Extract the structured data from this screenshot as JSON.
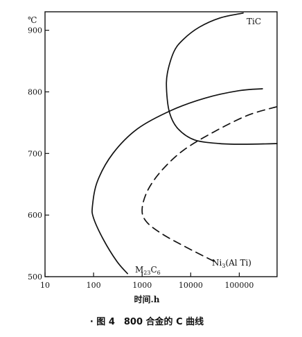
{
  "chart_data": {
    "type": "line",
    "title": "",
    "unit_label": "℃",
    "xlabel": "时间.h",
    "ylabel": "",
    "x_scale": "log",
    "xlim": [
      10,
      600000
    ],
    "ylim": [
      500,
      930
    ],
    "x_ticks": [
      10,
      100,
      1000,
      10000,
      100000
    ],
    "x_tick_labels": [
      "10",
      "100",
      "1000",
      "10000",
      "100000"
    ],
    "y_ticks": [
      500,
      600,
      700,
      800,
      900
    ],
    "y_tick_labels": [
      "500",
      "600",
      "700",
      "800",
      "900"
    ],
    "grid": false,
    "series": [
      {
        "name": "TiC",
        "style": "solid",
        "label_text": "TiC",
        "points": [
          [
            120000,
            928
          ],
          [
            40000,
            920
          ],
          [
            15000,
            905
          ],
          [
            7000,
            885
          ],
          [
            4500,
            865
          ],
          [
            3300,
            830
          ],
          [
            3200,
            800
          ],
          [
            3700,
            765
          ],
          [
            5500,
            740
          ],
          [
            12000,
            722
          ],
          [
            40000,
            716
          ],
          [
            120000,
            715
          ],
          [
            600000,
            716
          ]
        ]
      },
      {
        "name": "M23C6",
        "style": "solid",
        "label_text": "M",
        "label_sub1": "23",
        "label_mid": "C",
        "label_sub2": "6",
        "points": [
          [
            500,
            505
          ],
          [
            300,
            525
          ],
          [
            160,
            560
          ],
          [
            100,
            595
          ],
          [
            95,
            615
          ],
          [
            120,
            655
          ],
          [
            250,
            700
          ],
          [
            800,
            740
          ],
          [
            4000,
            770
          ],
          [
            20000,
            790
          ],
          [
            100000,
            802
          ],
          [
            300000,
            805
          ]
        ]
      },
      {
        "name": "Ni3(Al Ti)",
        "style": "dashed",
        "label_text": "Ni",
        "label_sub1": "3",
        "label_mid": "(Al Ti)",
        "points": [
          [
            30000,
            525
          ],
          [
            8000,
            548
          ],
          [
            2500,
            570
          ],
          [
            1200,
            590
          ],
          [
            1000,
            610
          ],
          [
            1300,
            640
          ],
          [
            2500,
            672
          ],
          [
            7000,
            705
          ],
          [
            30000,
            735
          ],
          [
            150000,
            762
          ],
          [
            600000,
            776
          ]
        ]
      }
    ],
    "caption": "· 图 4　800 合金的 C 曲线"
  }
}
